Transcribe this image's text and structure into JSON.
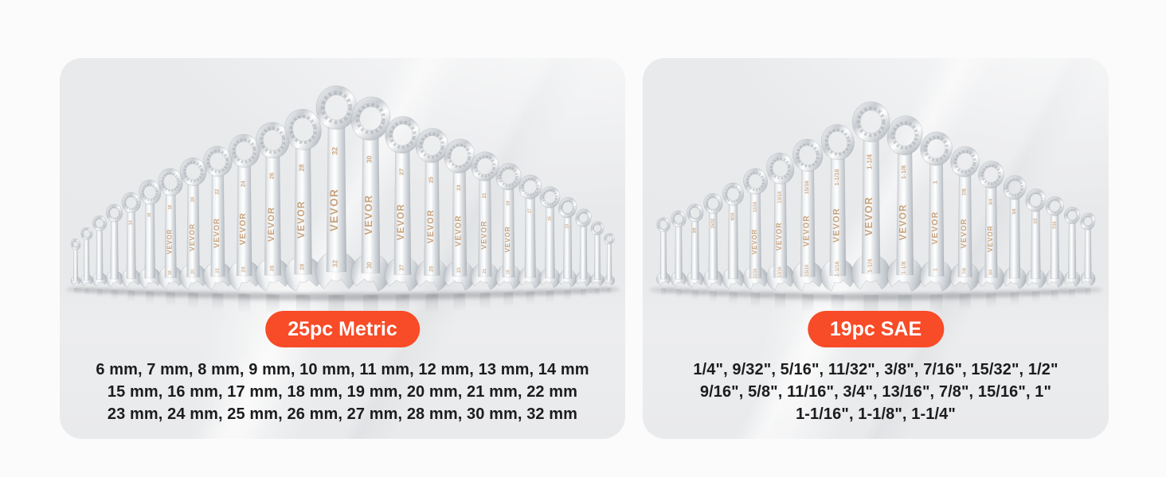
{
  "colors": {
    "accent": "#f84b27",
    "badge_text": "#ffffff",
    "panel_bg": "#e9eaec",
    "page_bg": "#fbfbfc",
    "text": "#1c1c1e",
    "engraving": "#c49a6e"
  },
  "brand": "VEVOR",
  "panels": [
    {
      "id": "metric",
      "badge": "25pc Metric",
      "lines": [
        "6 mm, 7 mm, 8 mm, 9 mm, 10 mm, 11 mm, 12 mm, 13 mm, 14 mm",
        "15 mm, 16 mm, 17 mm, 18 mm, 19 mm, 20 mm, 21 mm, 22 mm",
        "23 mm, 24 mm, 25 mm, 26 mm, 27 mm, 28 mm, 30 mm, 32 mm"
      ],
      "wrenches": [
        {
          "label": "6",
          "v": 6
        },
        {
          "label": "8",
          "v": 8
        },
        {
          "label": "10",
          "v": 10
        },
        {
          "label": "12",
          "v": 12
        },
        {
          "label": "14",
          "v": 14
        },
        {
          "label": "16",
          "v": 16
        },
        {
          "label": "18",
          "v": 18
        },
        {
          "label": "20",
          "v": 20
        },
        {
          "label": "22",
          "v": 22
        },
        {
          "label": "24",
          "v": 24
        },
        {
          "label": "26",
          "v": 26
        },
        {
          "label": "28",
          "v": 28
        },
        {
          "label": "32",
          "v": 32
        },
        {
          "label": "30",
          "v": 30
        },
        {
          "label": "27",
          "v": 27
        },
        {
          "label": "25",
          "v": 25
        },
        {
          "label": "23",
          "v": 23
        },
        {
          "label": "21",
          "v": 21
        },
        {
          "label": "19",
          "v": 19
        },
        {
          "label": "17",
          "v": 17
        },
        {
          "label": "15",
          "v": 15
        },
        {
          "label": "13",
          "v": 13
        },
        {
          "label": "11",
          "v": 11
        },
        {
          "label": "9",
          "v": 9
        },
        {
          "label": "7",
          "v": 7
        }
      ]
    },
    {
      "id": "sae",
      "badge": "19pc SAE",
      "lines": [
        "1/4\", 9/32\", 5/16\", 11/32\", 3/8\", 7/16\", 15/32\", 1/2\"",
        "9/16\", 5/8\", 11/16\", 3/4\", 13/16\", 7/8\", 15/16\", 1\"",
        "1-1/16\", 1-1/8\", 1-1/4\""
      ],
      "wrenches": [
        {
          "label": "1/4",
          "v": 0.25
        },
        {
          "label": "5/16",
          "v": 0.3125
        },
        {
          "label": "3/8",
          "v": 0.375
        },
        {
          "label": "15/32",
          "v": 0.46875
        },
        {
          "label": "9/16",
          "v": 0.5625
        },
        {
          "label": "11/16",
          "v": 0.6875
        },
        {
          "label": "13/16",
          "v": 0.8125
        },
        {
          "label": "15/16",
          "v": 0.9375
        },
        {
          "label": "1-1/16",
          "v": 1.0625
        },
        {
          "label": "1-1/4",
          "v": 1.25
        },
        {
          "label": "1-1/8",
          "v": 1.125
        },
        {
          "label": "1",
          "v": 1
        },
        {
          "label": "7/8",
          "v": 0.875
        },
        {
          "label": "3/4",
          "v": 0.75
        },
        {
          "label": "5/8",
          "v": 0.625
        },
        {
          "label": "1/2",
          "v": 0.5
        },
        {
          "label": "7/16",
          "v": 0.4375
        },
        {
          "label": "11/32",
          "v": 0.34375
        },
        {
          "label": "9/32",
          "v": 0.28125
        }
      ]
    }
  ]
}
